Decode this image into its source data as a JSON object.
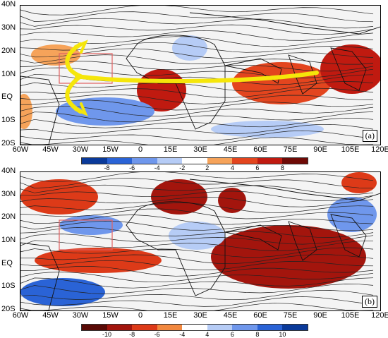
{
  "panel_a": {
    "label": "(a)",
    "colorbar_ticks": [
      "-8",
      "-6",
      "-4",
      "-2",
      "2",
      "4",
      "6",
      "8"
    ],
    "colorbar_colors": [
      "#0a3a9a",
      "#2a63d6",
      "#6f97ec",
      "#b6ccf6",
      "#ffffff",
      "#f6a35a",
      "#e3451e",
      "#c01a10",
      "#6e0a06"
    ]
  },
  "panel_b": {
    "label": "(b)",
    "colorbar_ticks": [
      "-10",
      "-8",
      "-6",
      "-4",
      "4",
      "6",
      "8",
      "10"
    ],
    "colorbar_colors": [
      "#5a0a06",
      "#a3150d",
      "#dd3a18",
      "#f2883f",
      "#ffffff",
      "#b6ccf6",
      "#6f97ec",
      "#2a63d6",
      "#0a3a9a"
    ]
  },
  "axes": {
    "y_ticks": [
      "40N",
      "30N",
      "20N",
      "10N",
      "EQ",
      "10S",
      "20S"
    ],
    "x_ticks": [
      "60W",
      "45W",
      "30W",
      "15W",
      "0",
      "15E",
      "30E",
      "45E",
      "60E",
      "75E",
      "90E",
      "105E",
      "120E"
    ]
  },
  "colors": {
    "arrow": "#f5e60a",
    "box": "#e06060",
    "coast": "#111111",
    "stream": "#222222"
  },
  "icons": [
    "curved-arrow-icon"
  ]
}
